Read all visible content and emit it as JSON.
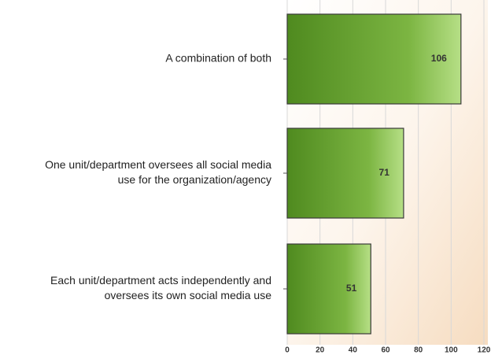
{
  "chart_data": {
    "type": "bar",
    "orientation": "horizontal",
    "categories": [
      [
        "A combination of both"
      ],
      [
        "One unit/department oversees all social media",
        "use for the organization/agency"
      ],
      [
        "Each unit/department acts independently and",
        "oversees its own social media use"
      ]
    ],
    "values": [
      106,
      71,
      51
    ],
    "color": "#6aa033",
    "xlim": [
      0,
      120
    ],
    "xticks": [
      0,
      20,
      40,
      60,
      80,
      100,
      120
    ],
    "grid": true
  }
}
